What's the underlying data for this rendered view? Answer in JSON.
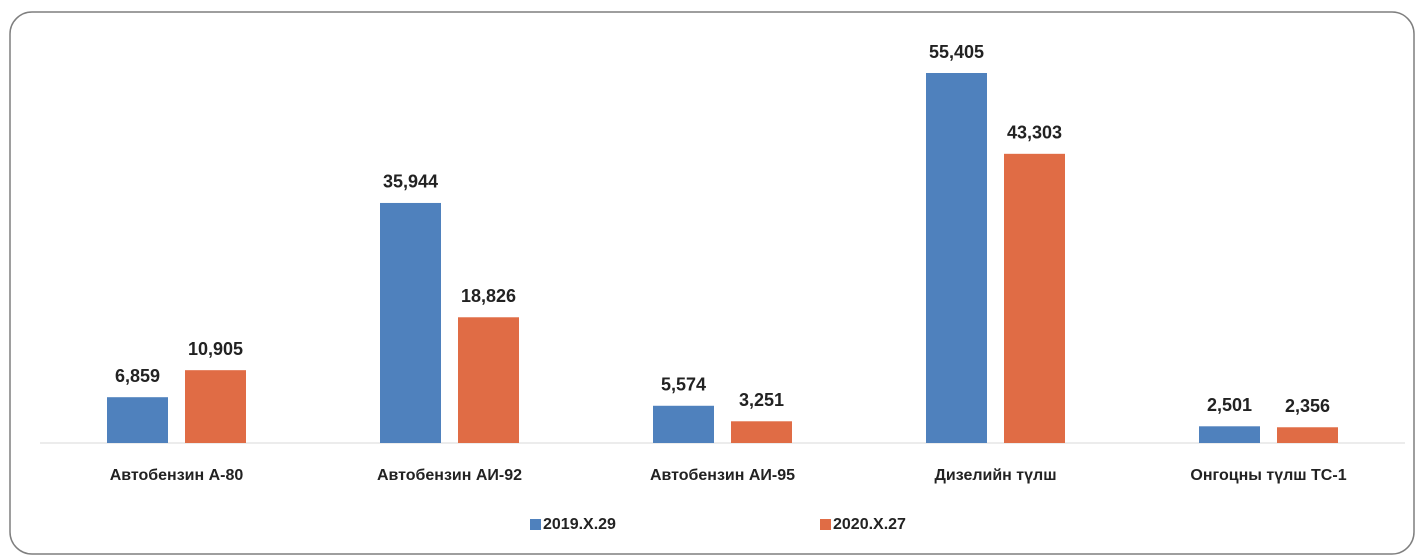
{
  "chart_data": {
    "type": "bar",
    "categories": [
      "Автобензин А-80",
      "Автобензин АИ-92",
      "Автобензин АИ-95",
      "Дизелийн түлш",
      "Онгоцны түлш ТС-1"
    ],
    "series": [
      {
        "name": "2019.X.29",
        "color": "#4f81bd",
        "values": [
          6859,
          35944,
          5574,
          55405,
          2501
        ],
        "value_labels": [
          "6,859",
          "35,944",
          "5,574",
          "55,405",
          "2,501"
        ]
      },
      {
        "name": "2020.X.27",
        "color": "#e06c45",
        "values": [
          10905,
          18826,
          3251,
          43303,
          2356
        ],
        "value_labels": [
          "10,905",
          "18,826",
          "3,251",
          "43,303",
          "2,356"
        ]
      }
    ],
    "legend": "bottom"
  }
}
